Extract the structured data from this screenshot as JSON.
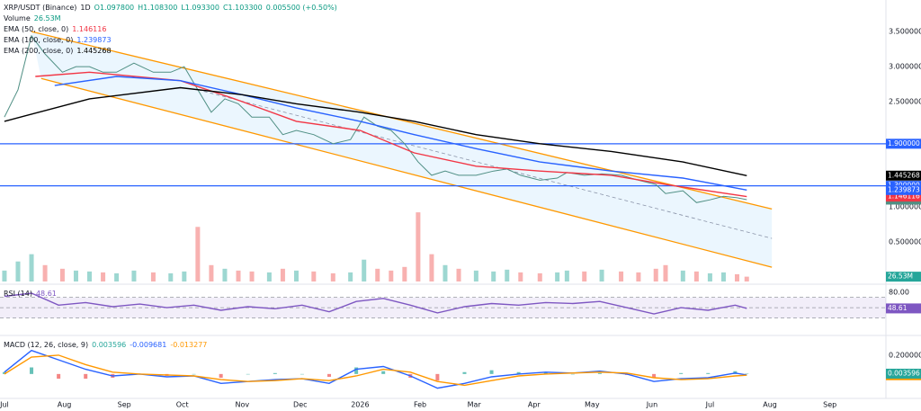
{
  "chart_data": [
    {
      "type": "line",
      "title": "XRP/USDT (Binance)",
      "interval": "1D",
      "ohlc": [
        {
          "value": 1.0978,
          "label": "O1.097800"
        },
        {
          "value": 1.1083,
          "label": "H1.108300"
        },
        {
          "value": 1.0933,
          "label": "L1.093300"
        },
        {
          "value": 1.1033,
          "label": "C1.103300"
        }
      ],
      "change": "0.005500 (+0.50%)",
      "xlim": [
        -2.3,
        456
      ],
      "xticks": [
        {
          "value": 0,
          "label": "Jul"
        },
        {
          "value": 31,
          "label": "Aug"
        },
        {
          "value": 62,
          "label": "Sep"
        },
        {
          "value": 92,
          "label": "Oct"
        },
        {
          "value": 123,
          "label": "Nov"
        },
        {
          "value": 153,
          "label": "Dec"
        },
        {
          "value": 184,
          "label": "2026"
        },
        {
          "value": 215,
          "label": "Feb"
        },
        {
          "value": 243,
          "label": "Mar"
        },
        {
          "value": 274,
          "label": "Apr"
        },
        {
          "value": 304,
          "label": "May"
        },
        {
          "value": 335,
          "label": "Jun"
        },
        {
          "value": 365,
          "label": "Jul"
        },
        {
          "value": 396,
          "label": "Aug"
        },
        {
          "value": 427,
          "label": "Sep"
        }
      ],
      "ylim": [
        -0.09,
        3.95
      ],
      "yticks": [
        {
          "value": 3.5,
          "label": "3.500000"
        },
        {
          "value": 3,
          "label": "3.000000"
        },
        {
          "value": 2.5,
          "label": "2.500000"
        },
        {
          "value": 1,
          "label": "1.000000"
        },
        {
          "value": 0.5,
          "label": "0.500000"
        }
      ],
      "levels": {
        "color": "#2962ff",
        "values": [
          {
            "value": 1.9,
            "label": "1.900000"
          },
          {
            "value": 1.3,
            "label": "1.300000"
          }
        ]
      },
      "channel": {
        "color": "#ff9800",
        "upper": {
          "x": [
            14,
            397
          ],
          "values": [
            3.5,
            0.97
          ]
        },
        "lower": {
          "x": [
            19,
            397
          ],
          "values": [
            2.83,
            0.14
          ]
        },
        "middle": {
          "x": [
            100,
            397
          ],
          "values": [
            2.67,
            0.55
          ]
        }
      },
      "series": [
        {
          "color": "#4f8f84",
          "last": {
            "value": 1.1033,
            "label": "1.103300"
          },
          "x": [
            0,
            7,
            14,
            21,
            30,
            37,
            44,
            51,
            58,
            67,
            77,
            86,
            93,
            100,
            107,
            114,
            121,
            128,
            137,
            144,
            151,
            160,
            170,
            179,
            186,
            193,
            200,
            207,
            214,
            221,
            228,
            235,
            244,
            253,
            260,
            267,
            277,
            286,
            291,
            300,
            309,
            319,
            328,
            337,
            342,
            351,
            358,
            365,
            372,
            379,
            384
          ],
          "values": [
            2.28,
            2.67,
            3.44,
            3.18,
            2.92,
            3.0,
            3.0,
            2.92,
            2.92,
            3.05,
            2.92,
            2.92,
            3.0,
            2.67,
            2.35,
            2.54,
            2.47,
            2.28,
            2.28,
            2.03,
            2.09,
            2.03,
            1.9,
            1.96,
            2.28,
            2.15,
            2.09,
            1.9,
            1.64,
            1.45,
            1.51,
            1.45,
            1.45,
            1.51,
            1.54,
            1.45,
            1.38,
            1.41,
            1.49,
            1.45,
            1.47,
            1.45,
            1.38,
            1.32,
            1.19,
            1.23,
            1.06,
            1.1,
            1.15,
            1.13,
            1.1033
          ]
        },
        {
          "name": "EMA (50, close, 0)",
          "color": "#f23645",
          "last": {
            "value": 1.146116,
            "label": "1.146116"
          },
          "x": [
            16,
            44,
            91,
            119,
            151,
            184,
            212,
            244,
            277,
            314,
            342,
            384
          ],
          "values": [
            2.86,
            2.92,
            2.8,
            2.54,
            2.22,
            2.09,
            1.77,
            1.58,
            1.51,
            1.45,
            1.32,
            1.146116
          ]
        },
        {
          "name": "EMA (100, close, 0)",
          "color": "#2962ff",
          "last": {
            "value": 1.239873,
            "label": "1.239873"
          },
          "x": [
            26,
            58,
            91,
            123,
            151,
            184,
            212,
            244,
            277,
            314,
            351,
            384
          ],
          "values": [
            2.73,
            2.86,
            2.8,
            2.6,
            2.41,
            2.22,
            2.03,
            1.83,
            1.64,
            1.51,
            1.41,
            1.239873
          ]
        },
        {
          "name": "EMA (200, close, 0)",
          "color": "#000000",
          "last": {
            "value": 1.445268,
            "label": "1.445268"
          },
          "x": [
            0,
            44,
            91,
            123,
            151,
            184,
            212,
            244,
            277,
            314,
            351,
            384
          ],
          "values": [
            2.22,
            2.54,
            2.7,
            2.6,
            2.47,
            2.35,
            2.22,
            2.03,
            1.9,
            1.79,
            1.64,
            1.445268
          ]
        }
      ]
    },
    {
      "type": "bar",
      "title": "Volume",
      "up_color": "#26a69a",
      "down_color": "#ef5350",
      "last": {
        "value": 26.53,
        "label": "26.53M"
      },
      "ylim": [
        0,
        420
      ],
      "x": [
        0,
        7,
        14,
        21,
        30,
        37,
        44,
        51,
        58,
        67,
        77,
        86,
        93,
        100,
        107,
        114,
        121,
        128,
        137,
        144,
        151,
        160,
        170,
        179,
        186,
        193,
        200,
        207,
        214,
        221,
        228,
        235,
        244,
        253,
        260,
        267,
        277,
        286,
        291,
        300,
        309,
        319,
        328,
        337,
        342,
        351,
        358,
        365,
        372,
        379,
        384
      ],
      "values": [
        60,
        110,
        150,
        90,
        70,
        60,
        55,
        50,
        45,
        60,
        50,
        45,
        55,
        300,
        90,
        70,
        60,
        55,
        50,
        70,
        60,
        55,
        45,
        50,
        120,
        70,
        60,
        80,
        380,
        150,
        90,
        70,
        60,
        55,
        65,
        50,
        45,
        50,
        60,
        55,
        65,
        55,
        50,
        70,
        90,
        60,
        55,
        45,
        50,
        40,
        26.53
      ]
    },
    {
      "type": "line",
      "title": "RSI (14)",
      "ylim": [
        -2,
        92
      ],
      "yticks": [
        {
          "value": 80,
          "label": "80.00"
        }
      ],
      "bands": [
        70,
        50,
        30
      ],
      "series": [
        {
          "color": "#7e57c2",
          "last": {
            "value": 48.61,
            "label": "48.61"
          },
          "x": [
            0,
            14,
            28,
            42,
            56,
            70,
            84,
            98,
            112,
            126,
            140,
            154,
            168,
            182,
            196,
            210,
            224,
            238,
            252,
            266,
            280,
            294,
            308,
            322,
            336,
            350,
            364,
            378,
            384
          ],
          "values": [
            72,
            78,
            55,
            60,
            52,
            57,
            50,
            55,
            45,
            52,
            48,
            55,
            42,
            62,
            68,
            55,
            40,
            52,
            58,
            55,
            60,
            58,
            62,
            50,
            38,
            50,
            45,
            55,
            48.61
          ]
        }
      ]
    },
    {
      "type": "line",
      "title": "MACD (12, 26, close, 9)",
      "ylim": [
        -0.24,
        0.39
      ],
      "yticks": [
        {
          "value": 0.2,
          "label": "0.200000"
        }
      ],
      "histogram": {
        "up_color": "#26a69a",
        "down_color": "#ef5350",
        "last": {
          "value": 0.003596,
          "label": "0.003596"
        },
        "x": [
          0,
          14,
          28,
          42,
          56,
          70,
          84,
          98,
          112,
          126,
          140,
          154,
          168,
          182,
          196,
          210,
          224,
          238,
          252,
          266,
          280,
          294,
          308,
          322,
          336,
          350,
          364,
          378,
          384
        ],
        "values": [
          0.02,
          0.07,
          -0.05,
          -0.05,
          -0.04,
          0,
          -0.02,
          0,
          -0.04,
          0,
          0.01,
          0,
          -0.03,
          0.07,
          0.03,
          -0.04,
          -0.07,
          0.02,
          0.04,
          0.02,
          0.02,
          0,
          0.01,
          -0.01,
          -0.04,
          0.01,
          0.01,
          0.03,
          0.003596
        ]
      },
      "series": [
        {
          "color": "#2962ff",
          "last": {
            "value": -0.009681,
            "label": "-0.009681"
          },
          "x": [
            0,
            14,
            28,
            42,
            56,
            70,
            84,
            98,
            112,
            126,
            140,
            154,
            168,
            182,
            196,
            210,
            224,
            238,
            252,
            266,
            280,
            294,
            308,
            322,
            336,
            350,
            364,
            378,
            384
          ],
          "values": [
            0.02,
            0.25,
            0.15,
            0.05,
            -0.02,
            0,
            -0.03,
            -0.02,
            -0.1,
            -0.08,
            -0.06,
            -0.05,
            -0.1,
            0.05,
            0.08,
            -0.02,
            -0.15,
            -0.1,
            -0.03,
            0,
            0.02,
            0.01,
            0.03,
            0,
            -0.08,
            -0.05,
            -0.04,
            0.01,
            -0.009681
          ]
        },
        {
          "color": "#ff9800",
          "last": {
            "value": -0.013277,
            "label": "-0.013277"
          },
          "x": [
            0,
            14,
            28,
            42,
            56,
            70,
            84,
            98,
            112,
            126,
            140,
            154,
            168,
            182,
            196,
            210,
            224,
            238,
            252,
            266,
            280,
            294,
            308,
            322,
            336,
            350,
            364,
            378,
            384
          ],
          "values": [
            0,
            0.18,
            0.2,
            0.1,
            0.02,
            0,
            -0.01,
            -0.02,
            -0.06,
            -0.08,
            -0.07,
            -0.05,
            -0.07,
            -0.02,
            0.05,
            0.02,
            -0.08,
            -0.12,
            -0.07,
            -0.02,
            0,
            0.01,
            0.02,
            0.01,
            -0.04,
            -0.06,
            -0.05,
            -0.02,
            -0.013277
          ]
        }
      ]
    }
  ]
}
